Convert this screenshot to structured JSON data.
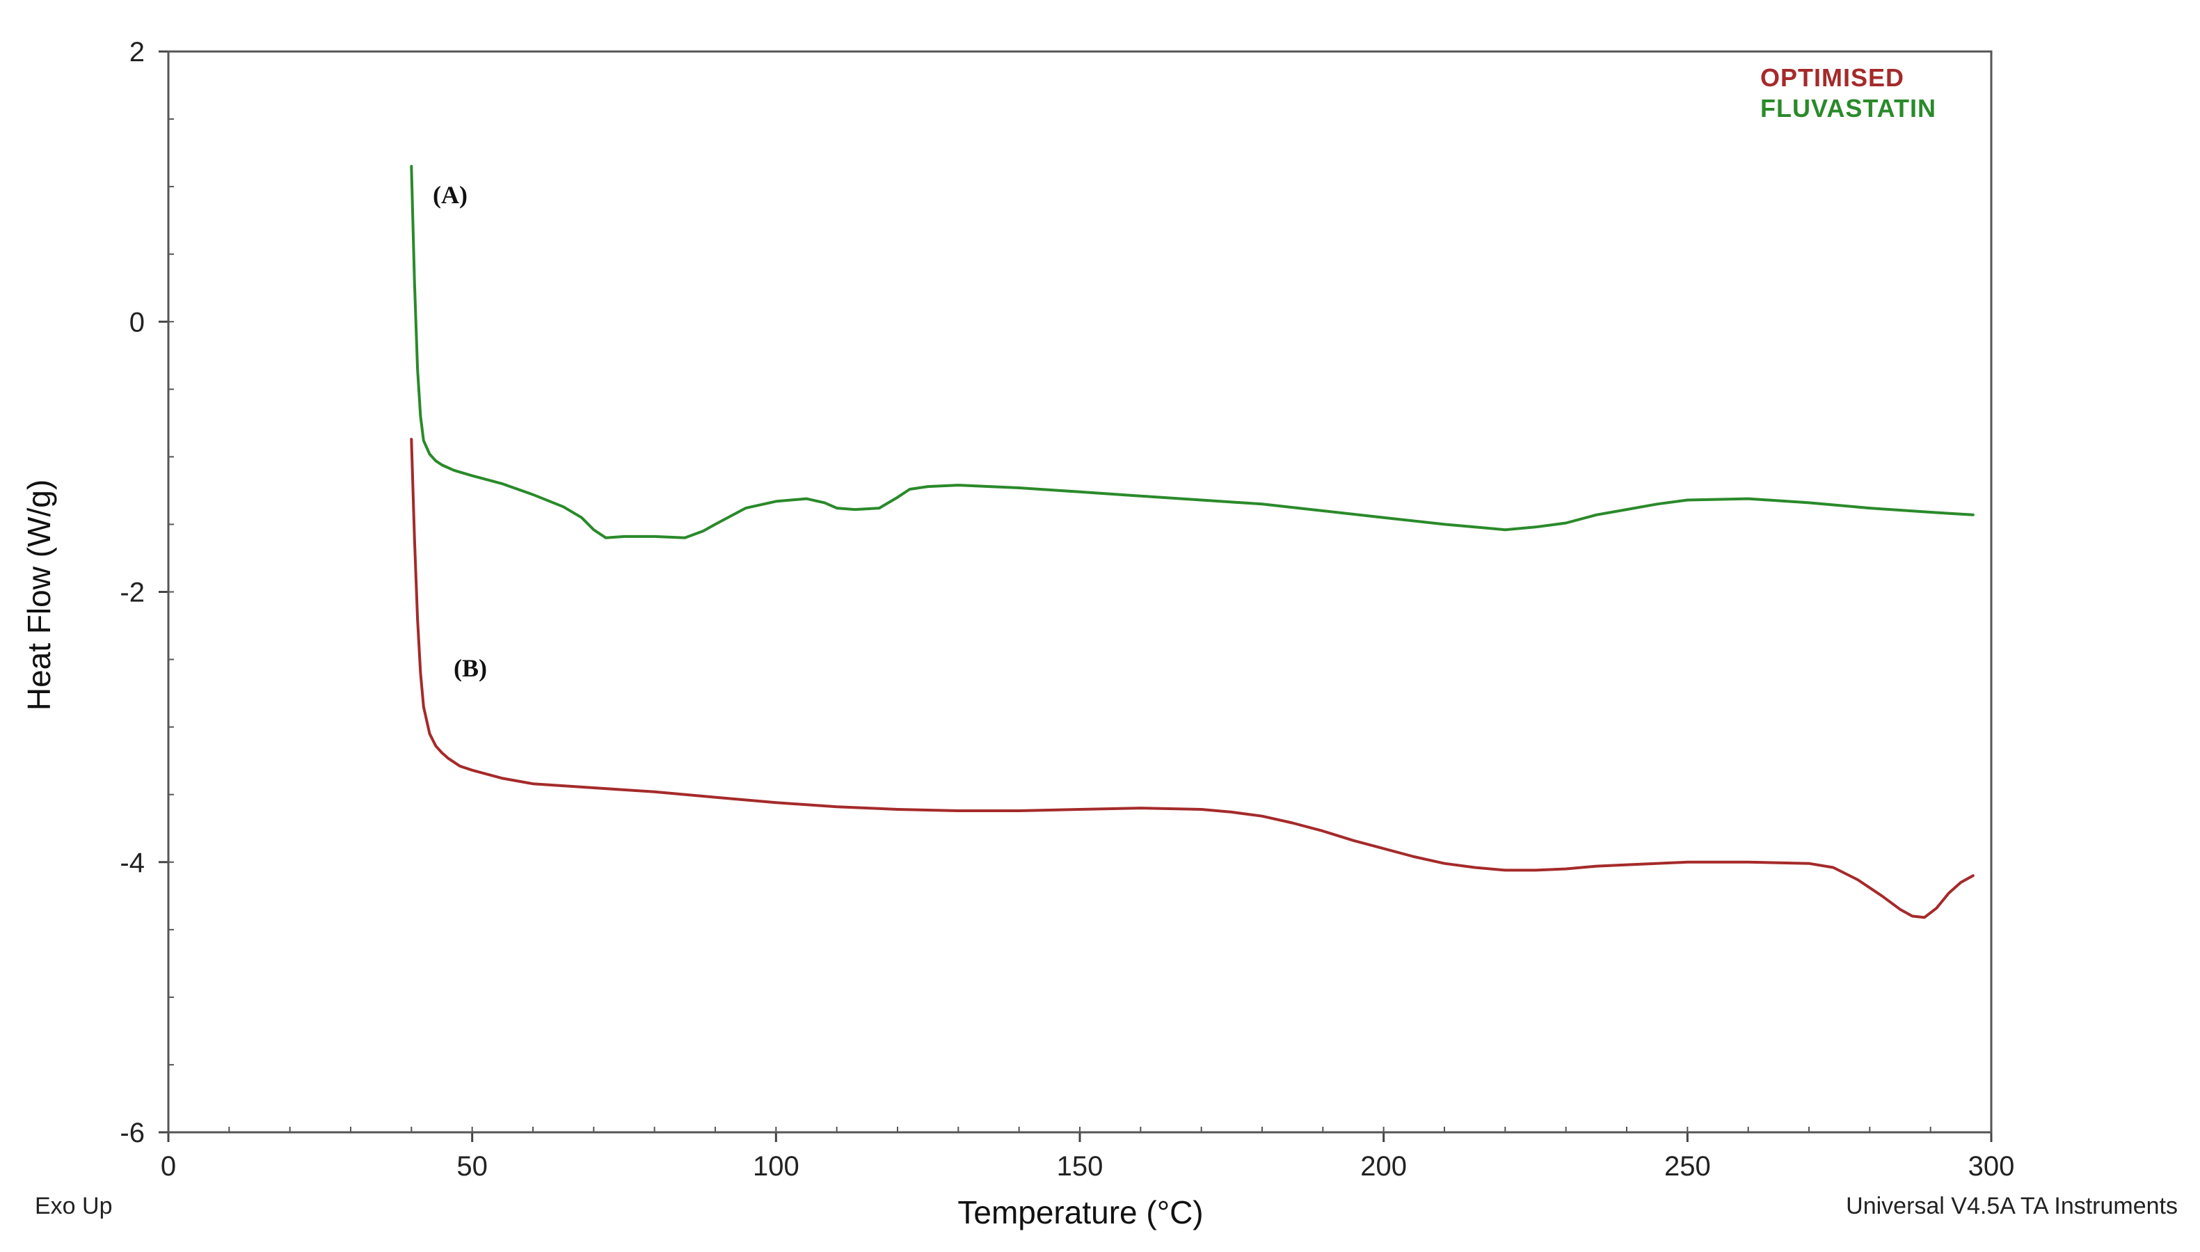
{
  "chart_data": {
    "type": "line",
    "title": "",
    "xlabel": "Temperature (°C)",
    "ylabel": "Heat Flow (W/g)",
    "xlim": [
      0,
      300
    ],
    "ylim": [
      -6,
      2
    ],
    "x_ticks": [
      "0",
      "50",
      "100",
      "150",
      "200",
      "250",
      "300"
    ],
    "y_ticks": [
      "2",
      "0",
      "-2",
      "-4",
      "-6"
    ],
    "x_tick_values": [
      0,
      50,
      100,
      150,
      200,
      250,
      300
    ],
    "y_tick_values": [
      2,
      0,
      -2,
      -4,
      -6
    ],
    "grid": false,
    "legend_position": "top-right",
    "series": [
      {
        "name": "OPTIMISED",
        "color": "#a52a2a",
        "curve_label": "(B)",
        "x": [
          40,
          40.5,
          41,
          41.5,
          42,
          43,
          44,
          45,
          46,
          48,
          50,
          55,
          60,
          70,
          80,
          90,
          100,
          110,
          120,
          130,
          140,
          150,
          160,
          170,
          175,
          180,
          185,
          190,
          195,
          200,
          205,
          210,
          215,
          220,
          225,
          230,
          235,
          240,
          250,
          260,
          270,
          274,
          278,
          282,
          285,
          287,
          289,
          291,
          293,
          295,
          297
        ],
        "y": [
          -0.87,
          -1.6,
          -2.2,
          -2.6,
          -2.85,
          -3.05,
          -3.14,
          -3.19,
          -3.23,
          -3.29,
          -3.32,
          -3.38,
          -3.42,
          -3.45,
          -3.48,
          -3.52,
          -3.56,
          -3.59,
          -3.61,
          -3.62,
          -3.62,
          -3.61,
          -3.6,
          -3.61,
          -3.63,
          -3.66,
          -3.71,
          -3.77,
          -3.84,
          -3.9,
          -3.96,
          -4.01,
          -4.04,
          -4.06,
          -4.06,
          -4.05,
          -4.03,
          -4.02,
          -4.0,
          -4.0,
          -4.01,
          -4.04,
          -4.13,
          -4.25,
          -4.35,
          -4.4,
          -4.41,
          -4.34,
          -4.23,
          -4.15,
          -4.1
        ]
      },
      {
        "name": "FLUVASTATIN",
        "color": "#2a8a2a",
        "curve_label": "(A)",
        "x": [
          40,
          40.5,
          41,
          41.5,
          42,
          43,
          44,
          45,
          47,
          50,
          55,
          60,
          65,
          68,
          70,
          72,
          75,
          80,
          85,
          88,
          90,
          95,
          100,
          105,
          108,
          110,
          113,
          117,
          120,
          122,
          125,
          130,
          140,
          150,
          160,
          170,
          180,
          190,
          200,
          210,
          215,
          220,
          225,
          230,
          235,
          240,
          245,
          250,
          260,
          270,
          280,
          290,
          297
        ],
        "y": [
          1.15,
          0.3,
          -0.35,
          -0.7,
          -0.88,
          -0.98,
          -1.03,
          -1.06,
          -1.1,
          -1.14,
          -1.2,
          -1.28,
          -1.37,
          -1.45,
          -1.54,
          -1.6,
          -1.59,
          -1.59,
          -1.6,
          -1.55,
          -1.5,
          -1.38,
          -1.33,
          -1.31,
          -1.34,
          -1.38,
          -1.39,
          -1.38,
          -1.3,
          -1.24,
          -1.22,
          -1.21,
          -1.23,
          -1.26,
          -1.29,
          -1.32,
          -1.35,
          -1.4,
          -1.45,
          -1.5,
          -1.52,
          -1.54,
          -1.52,
          -1.49,
          -1.43,
          -1.39,
          -1.35,
          -1.32,
          -1.31,
          -1.34,
          -1.38,
          -1.41,
          -1.43
        ]
      }
    ],
    "annotations": [
      "(A)",
      "(B)"
    ]
  },
  "legend": {
    "items": [
      {
        "label": "OPTIMISED",
        "color": "#a52a2a"
      },
      {
        "label": "FLUVASTATIN",
        "color": "#2a8a2a"
      }
    ]
  },
  "footer": {
    "left_note": "Exo Up",
    "right_note": "Universal V4.5A TA Instruments"
  }
}
